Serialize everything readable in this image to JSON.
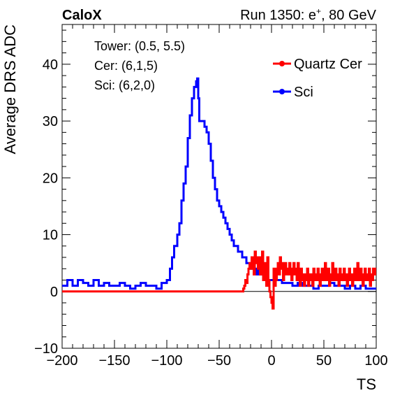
{
  "header": {
    "left_label": "CaloX",
    "run_prefix": "Run 1350: e",
    "run_sup": "+",
    "run_suffix": ", 80 GeV"
  },
  "info_lines": [
    "Tower: (0.5, 5.5)",
    "Cer: (6,1,5)",
    "Sci: (6,2,0)"
  ],
  "chart_data": {
    "type": "line",
    "title": "",
    "xlabel": "TS",
    "ylabel": "Average DRS ADC",
    "xlim": [
      -200,
      100
    ],
    "ylim": [
      -10,
      47
    ],
    "xticks": [
      -200,
      -150,
      -100,
      -50,
      0,
      50,
      100
    ],
    "yticks": [
      -10,
      0,
      10,
      20,
      30,
      40
    ],
    "xtick_labels": [
      "−200",
      "−150",
      "−100",
      "−50",
      "0",
      "50",
      "100"
    ],
    "ytick_labels": [
      "−10",
      "0",
      "10",
      "20",
      "30",
      "40"
    ],
    "grid": false,
    "zero_line": true,
    "legend": {
      "position": "top-right",
      "items": [
        {
          "label": "Quartz Cer",
          "color": "#ff0000"
        },
        {
          "label": "Sci",
          "color": "#0000ff"
        }
      ]
    },
    "series": [
      {
        "name": "Quartz Cer",
        "color": "#ff0000",
        "x": [
          -200,
          -27,
          -26,
          -25,
          -24,
          -23,
          -22,
          -21,
          -20,
          -19,
          -18,
          -17,
          -16,
          -15,
          -14,
          -13,
          -12,
          -11,
          -10,
          -9,
          -8,
          -7,
          -6,
          -5,
          -4,
          -3,
          -2,
          -1,
          0,
          1,
          2,
          3,
          4,
          5,
          6,
          7,
          8,
          9,
          10,
          11,
          12,
          13,
          14,
          15,
          16,
          17,
          18,
          19,
          20,
          21,
          22,
          23,
          24,
          25,
          26,
          27,
          28,
          29,
          30,
          31,
          32,
          33,
          34,
          35,
          36,
          37,
          38,
          39,
          40,
          41,
          42,
          43,
          44,
          45,
          46,
          47,
          48,
          49,
          50,
          51,
          52,
          53,
          54,
          55,
          56,
          57,
          58,
          59,
          60,
          61,
          62,
          63,
          64,
          65,
          66,
          67,
          68,
          69,
          70,
          71,
          72,
          73,
          74,
          75,
          76,
          77,
          78,
          79,
          80,
          81,
          82,
          83,
          84,
          85,
          86,
          87,
          88,
          89,
          90,
          91,
          92,
          93,
          94,
          95,
          96,
          97,
          98,
          99,
          100
        ],
        "y": [
          0,
          0.5,
          1,
          2,
          1.5,
          3,
          4,
          5,
          4,
          6,
          5,
          3,
          7,
          5,
          6,
          4,
          6,
          3,
          5,
          7,
          2,
          5,
          3,
          1,
          6,
          2,
          0,
          -1,
          -2,
          -3,
          4,
          1,
          2,
          4,
          5,
          3,
          6,
          4,
          5,
          2,
          3,
          5,
          4,
          3,
          4,
          5,
          3,
          2,
          4,
          5,
          3,
          4,
          2,
          5,
          3,
          1,
          4,
          3,
          2,
          1,
          3,
          2,
          4,
          1,
          2,
          3,
          2,
          1,
          4,
          2,
          3,
          2,
          4,
          3,
          1,
          2,
          4,
          3,
          2,
          5,
          3,
          2,
          4,
          1,
          2,
          3,
          5,
          2,
          3,
          4,
          2,
          3,
          1,
          4,
          3,
          2,
          3,
          4,
          2,
          3,
          1,
          2,
          4,
          3,
          2,
          1,
          3,
          4,
          2,
          3,
          5,
          2,
          3,
          4,
          2,
          1,
          3,
          4,
          2,
          3,
          2,
          4,
          1,
          3,
          2,
          4,
          3,
          4,
          4
        ]
      },
      {
        "name": "Sci",
        "color": "#0000ff",
        "x": [
          -200,
          -195,
          -190,
          -185,
          -180,
          -175,
          -170,
          -165,
          -160,
          -155,
          -150,
          -145,
          -140,
          -135,
          -130,
          -125,
          -120,
          -115,
          -110,
          -105,
          -100,
          -97,
          -95,
          -93,
          -90,
          -88,
          -86,
          -84,
          -82,
          -80,
          -78,
          -76,
          -74,
          -72,
          -71,
          -70,
          -69,
          -68,
          -66,
          -64,
          -62,
          -60,
          -58,
          -56,
          -54,
          -52,
          -50,
          -48,
          -46,
          -44,
          -42,
          -40,
          -38,
          -36,
          -34,
          -32,
          -30,
          -28,
          -26,
          -24,
          -22,
          -20,
          -18,
          -16,
          -14,
          -12,
          -10,
          -8,
          -6,
          -4,
          -2,
          0,
          5,
          10,
          15,
          20,
          25,
          30,
          35,
          40,
          45,
          50,
          55,
          60,
          65,
          70,
          75,
          80,
          85,
          90,
          95,
          100
        ],
        "y": [
          1,
          2,
          1,
          2,
          1.5,
          1,
          2,
          1,
          1.5,
          1,
          1,
          1.5,
          1,
          0.5,
          1,
          1.5,
          1,
          1,
          0.5,
          1.5,
          2,
          4,
          6,
          8,
          10,
          12,
          16,
          19,
          22,
          27,
          31,
          34,
          36,
          37,
          37.5,
          34,
          30,
          30,
          30,
          29,
          28,
          26,
          23,
          20,
          18,
          16,
          15,
          14,
          13,
          12,
          11,
          10,
          9,
          8,
          8,
          7,
          7,
          6,
          6,
          5,
          5,
          4,
          5,
          4,
          3,
          4,
          3,
          3,
          3,
          2,
          2,
          2,
          2,
          1.5,
          1.5,
          1,
          1.5,
          1,
          1,
          0.5,
          1,
          1,
          1.5,
          1,
          1,
          0.5,
          1,
          0.5,
          1,
          0.5,
          0.5,
          0.5
        ]
      }
    ]
  }
}
